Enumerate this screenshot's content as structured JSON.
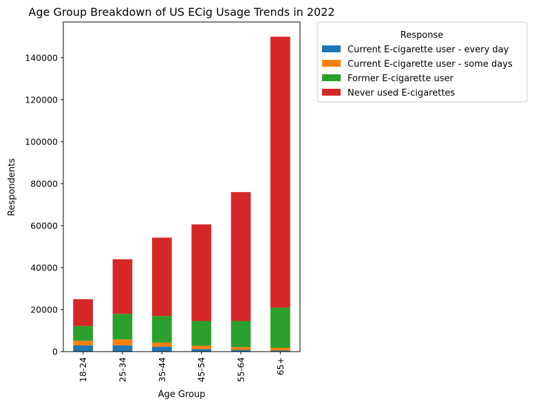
{
  "chart_data": {
    "type": "bar",
    "stacked": true,
    "title": "Age Group Breakdown of US ECig Usage Trends in 2022",
    "xlabel": "Age Group",
    "ylabel": "Respondents",
    "categories": [
      "18-24",
      "25-34",
      "35-44",
      "45-54",
      "55-64",
      "65+"
    ],
    "yticks": [
      0,
      20000,
      40000,
      60000,
      80000,
      100000,
      120000,
      140000
    ],
    "ylim": [
      0,
      157000
    ],
    "grid": false,
    "legend": {
      "title": "Response",
      "placement": "outside-top-right"
    },
    "series": [
      {
        "name": "Current E-cigarette user - every day",
        "color": "#1f77b4",
        "values": [
          3000,
          3000,
          2300,
          1200,
          800,
          500
        ]
      },
      {
        "name": "Current E-cigarette user - some days",
        "color": "#ff7f0e",
        "values": [
          2200,
          2800,
          2000,
          1600,
          1400,
          1300
        ]
      },
      {
        "name": "Former E-cigarette user",
        "color": "#2ca02c",
        "values": [
          7000,
          12200,
          12700,
          11800,
          12400,
          19200
        ]
      },
      {
        "name": "Never used E-cigarettes",
        "color": "#d62728",
        "values": [
          12800,
          26000,
          37300,
          46000,
          61400,
          129000
        ]
      }
    ]
  }
}
